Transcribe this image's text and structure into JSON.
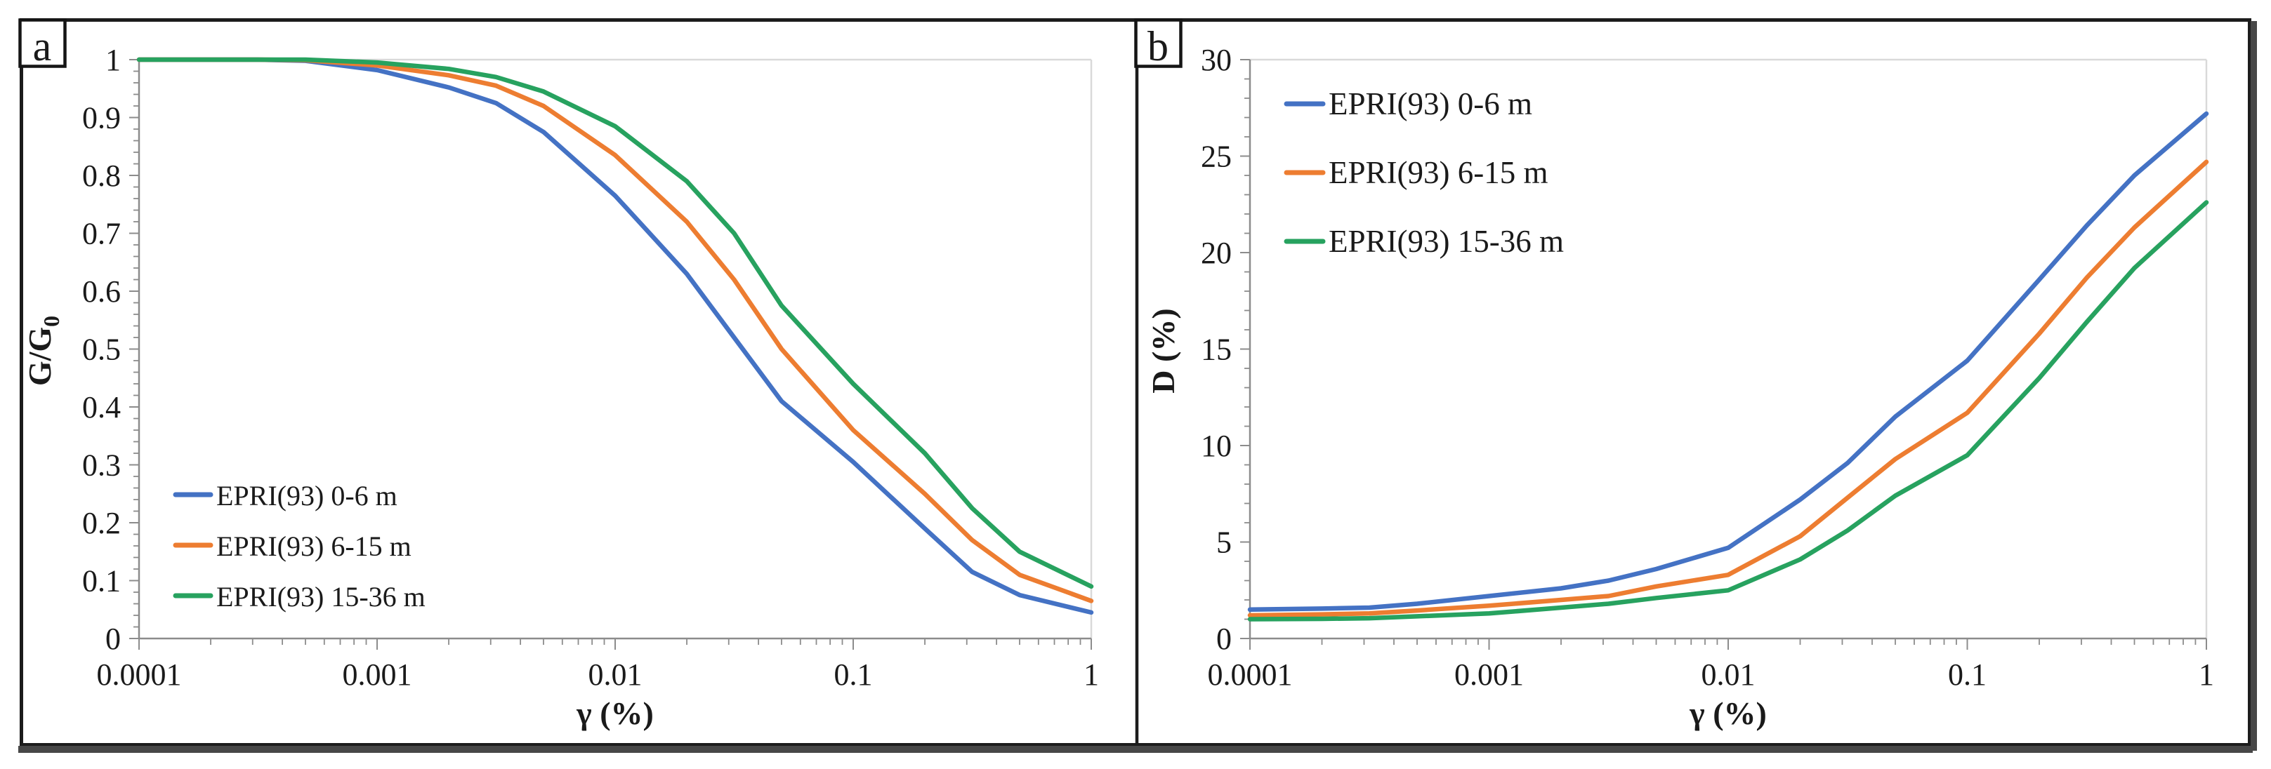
{
  "figure": {
    "panels": [
      {
        "corner_label": "a"
      },
      {
        "corner_label": "b"
      }
    ]
  },
  "chart_data": [
    {
      "type": "line",
      "panel": "a",
      "title": "",
      "xlabel": "γ (%)",
      "ylabel_main": "G/G",
      "ylabel_sub": "0",
      "x_scale": "log",
      "xlim": [
        0.0001,
        1
      ],
      "ylim": [
        0,
        1
      ],
      "grid": "off",
      "legend_position": "inside-bottom-left",
      "x_tick_labels": [
        "0.0001",
        "0.001",
        "0.01",
        "0.1",
        "1"
      ],
      "y_tick_labels": [
        "0",
        "0.1",
        "0.2",
        "0.3",
        "0.4",
        "0.5",
        "0.6",
        "0.7",
        "0.8",
        "0.9",
        "1"
      ],
      "x": [
        0.0001,
        0.0002,
        0.000316,
        0.0005,
        0.001,
        0.002,
        0.00316,
        0.005,
        0.01,
        0.02,
        0.0316,
        0.05,
        0.1,
        0.2,
        0.316,
        0.5,
        1
      ],
      "series": [
        {
          "name": "EPRI(93) 0-6 m",
          "color": "#4472C4",
          "values": [
            1.0,
            1.0,
            1.0,
            0.998,
            0.982,
            0.952,
            0.925,
            0.875,
            0.765,
            0.63,
            0.52,
            0.41,
            0.305,
            0.19,
            0.115,
            0.075,
            0.045
          ]
        },
        {
          "name": "EPRI(93) 6-15 m",
          "color": "#ED7D31",
          "values": [
            1.0,
            1.0,
            1.0,
            0.999,
            0.99,
            0.973,
            0.955,
            0.92,
            0.835,
            0.72,
            0.62,
            0.5,
            0.36,
            0.25,
            0.17,
            0.11,
            0.065
          ]
        },
        {
          "name": "EPRI(93) 15-36 m",
          "color": "#27A25F",
          "values": [
            1.0,
            1.0,
            1.0,
            1.0,
            0.995,
            0.984,
            0.97,
            0.945,
            0.885,
            0.79,
            0.7,
            0.575,
            0.44,
            0.32,
            0.225,
            0.15,
            0.09
          ]
        }
      ]
    },
    {
      "type": "line",
      "panel": "b",
      "title": "",
      "xlabel": "γ (%)",
      "ylabel_main": "D (%)",
      "ylabel_sub": "",
      "x_scale": "log",
      "xlim": [
        0.0001,
        1
      ],
      "ylim": [
        0,
        30
      ],
      "grid": "off",
      "legend_position": "inside-top-left",
      "x_tick_labels": [
        "0.0001",
        "0.001",
        "0.01",
        "0.1",
        "1"
      ],
      "y_tick_labels": [
        "0",
        "5",
        "10",
        "15",
        "20",
        "25",
        "30"
      ],
      "x": [
        0.0001,
        0.0002,
        0.000316,
        0.0005,
        0.001,
        0.002,
        0.00316,
        0.005,
        0.01,
        0.02,
        0.0316,
        0.05,
        0.1,
        0.2,
        0.316,
        0.5,
        1
      ],
      "series": [
        {
          "name": "EPRI(93) 0-6 m",
          "color": "#4472C4",
          "values": [
            1.5,
            1.55,
            1.6,
            1.8,
            2.2,
            2.6,
            3.0,
            3.6,
            4.7,
            7.2,
            9.1,
            11.5,
            14.4,
            18.6,
            21.4,
            24.0,
            27.2
          ]
        },
        {
          "name": "EPRI(93) 6-15 m",
          "color": "#ED7D31",
          "values": [
            1.2,
            1.25,
            1.3,
            1.45,
            1.7,
            2.0,
            2.2,
            2.7,
            3.3,
            5.3,
            7.3,
            9.3,
            11.7,
            15.8,
            18.7,
            21.3,
            24.7
          ]
        },
        {
          "name": "EPRI(93) 15-36 m",
          "color": "#27A25F",
          "values": [
            1.0,
            1.02,
            1.05,
            1.15,
            1.3,
            1.6,
            1.8,
            2.1,
            2.5,
            4.1,
            5.6,
            7.4,
            9.5,
            13.5,
            16.4,
            19.2,
            22.6
          ]
        }
      ]
    }
  ]
}
